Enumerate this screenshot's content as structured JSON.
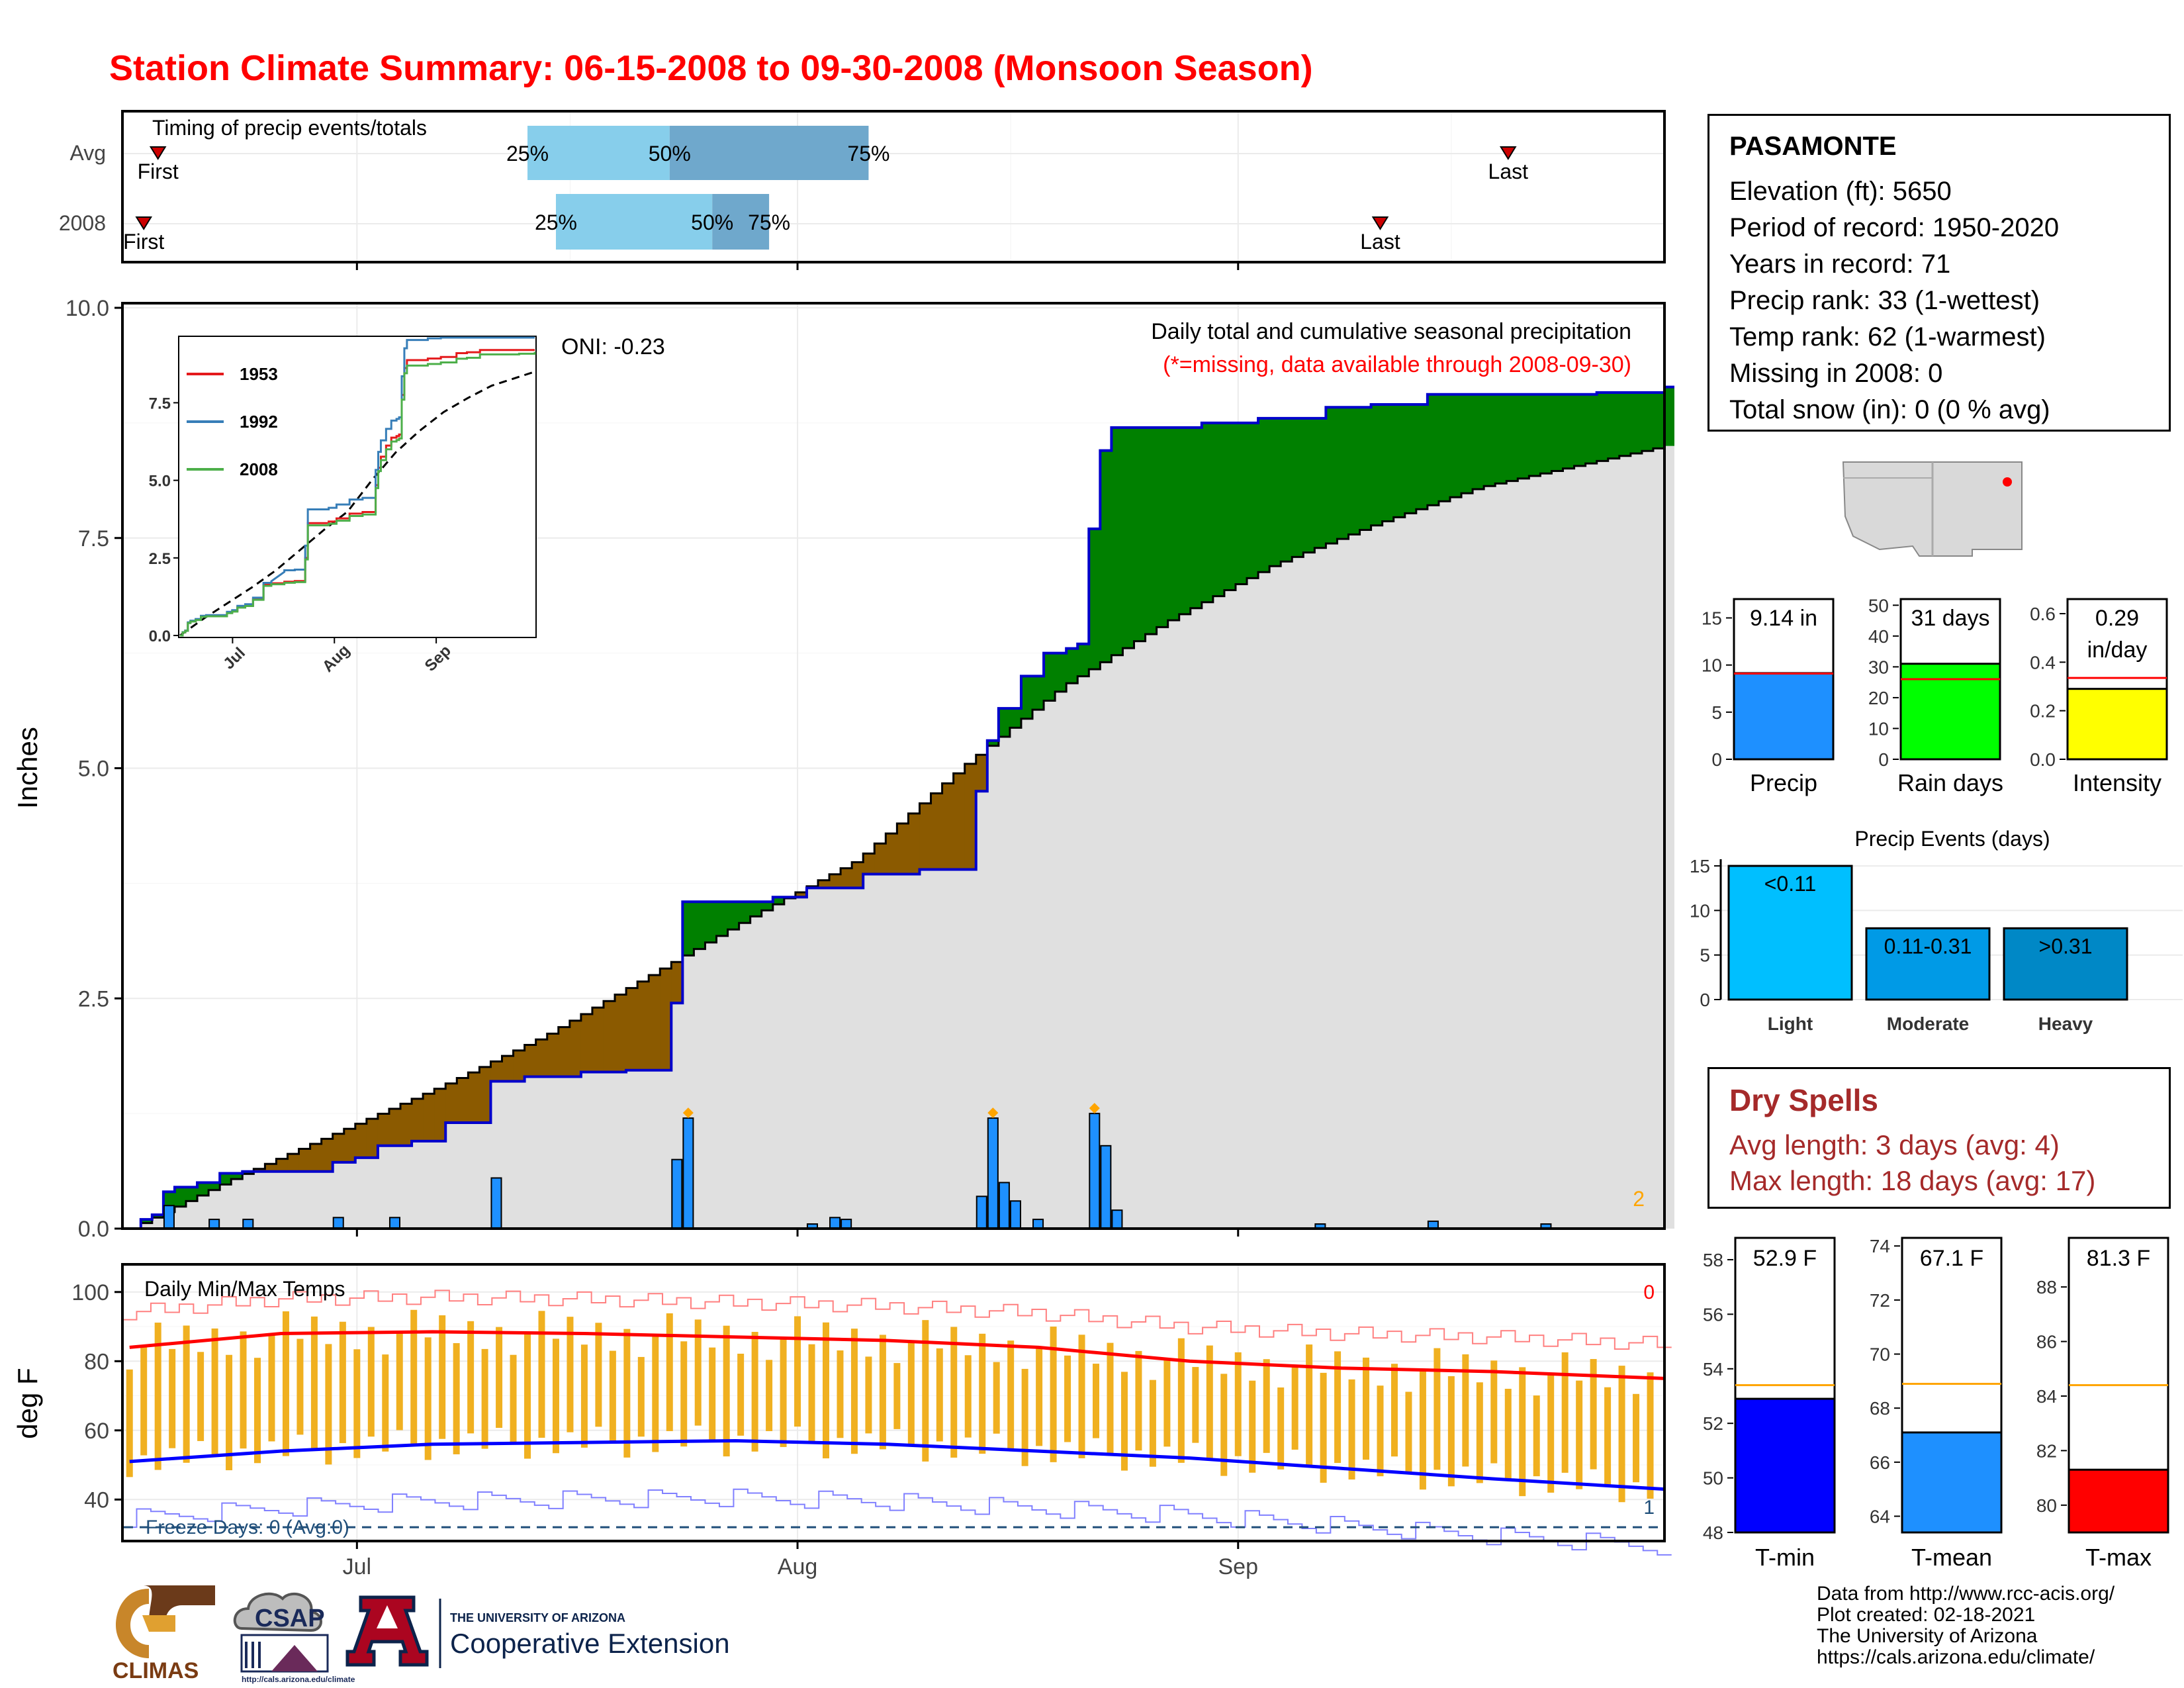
{
  "title": "Station Climate Summary: 06-15-2008 to 09-30-2008 (Monsoon Season)",
  "colors": {
    "title": "#ff0000",
    "observed": "#0000cc",
    "avg_line": "#000000",
    "above_avg": "#008000",
    "below_avg": "#8b5a00",
    "avg_fill": "#e0e0e0",
    "daily_bar": "#1e90ff",
    "tmax_line": "#ff0000",
    "tmin_line": "#0000ff",
    "temp_bar": "#f0b020"
  },
  "timing": {
    "label": "Timing of precip events/totals",
    "rows": [
      {
        "label": "Avg",
        "first_label": "First",
        "last_label": "Last",
        "p25": "25%",
        "p50": "50%",
        "p75": "75%",
        "first": "06-17",
        "last": "09-20",
        "q25": "07-13",
        "q50": "07-23",
        "q75": "08-06"
      },
      {
        "label": "2008",
        "first_label": "First",
        "last_label": "Last",
        "p25": "25%",
        "p50": "50%",
        "p75": "75%",
        "first": "06-16",
        "last": "09-11",
        "q25": "07-15",
        "q50": "07-26",
        "q75": "07-30"
      }
    ]
  },
  "precip": {
    "y_label": "Inches",
    "y_ticks": [
      "0.0",
      "2.5",
      "5.0",
      "7.5",
      "10.0"
    ],
    "x_ticks": [
      "Jul",
      "Aug",
      "Sep"
    ],
    "title_line1": "Daily total and cumulative seasonal precipitation",
    "title_line2": "(*=missing, data available through 2008-09-30)",
    "oni": "ONI: -0.23",
    "corner_count": "2",
    "inset": {
      "y_ticks": [
        "0.0",
        "2.5",
        "5.0",
        "7.5"
      ],
      "x_ticks": [
        "Jul",
        "Aug",
        "Sep"
      ],
      "legend": [
        {
          "name": "1953",
          "color": "#e41a1c"
        },
        {
          "name": "1992",
          "color": "#377eb8"
        },
        {
          "name": "2008",
          "color": "#4daf4a"
        }
      ]
    }
  },
  "temps": {
    "label": "Daily Min/Max Temps",
    "y_label": "deg F",
    "y_ticks": [
      "40",
      "60",
      "80",
      "100"
    ],
    "x_ticks": [
      "Jul",
      "Aug",
      "Sep"
    ],
    "freeze": "Freeze Days: 0 (Avg:0)",
    "count_hot": "0",
    "count_cold": "1"
  },
  "station": {
    "name": "PASAMONTE",
    "elevation": "Elevation (ft): 5650",
    "period": "Period of record: 1950-2020",
    "years": "Years in record: 71",
    "precip_rank": "Precip rank: 33 (1-wettest)",
    "temp_rank": "Temp rank: 62 (1-warmest)",
    "missing": "Missing in 2008: 0",
    "snow": "Total snow (in): 0 (0 % avg)"
  },
  "summary_bars": [
    {
      "label": "Precip",
      "value_label": "9.14 in",
      "value": 9.14,
      "avg": 9.1,
      "max": 17,
      "ticks": [
        "0",
        "5",
        "10",
        "15"
      ],
      "color": "#1e90ff"
    },
    {
      "label": "Rain days",
      "value_label": "31 days",
      "value": 31,
      "avg": 26,
      "max": 52,
      "ticks": [
        "0",
        "10",
        "20",
        "30",
        "40",
        "50"
      ],
      "color": "#00ff00"
    },
    {
      "label": "Intensity",
      "value_label": "0.29",
      "value_label2": "in/day",
      "value": 0.29,
      "avg": 0.335,
      "max": 0.66,
      "ticks": [
        "0.0",
        "0.2",
        "0.4",
        "0.6"
      ],
      "color": "#ffff00"
    }
  ],
  "events": {
    "title": "Precip Events (days)",
    "ticks": [
      "0",
      "5",
      "10",
      "15"
    ],
    "bars": [
      {
        "label": "Light",
        "box": "<0.11",
        "value": 15,
        "color": "#00bfff"
      },
      {
        "label": "Moderate",
        "box": "0.11-0.31",
        "value": 8,
        "color": "#009ae6"
      },
      {
        "label": "Heavy",
        "box": ">0.31",
        "value": 8,
        "color": "#0088c6"
      }
    ]
  },
  "dry_spells": {
    "title": "Dry Spells",
    "avg": "Avg length: 3 days (avg: 4)",
    "max": "Max length: 18 days (avg: 17)"
  },
  "temp_bars": [
    {
      "label": "T-min",
      "value_label": "52.9 F",
      "value": 52.9,
      "avg": 53.4,
      "min": 48,
      "max": 58.8,
      "ticks": [
        "48",
        "50",
        "52",
        "54",
        "56",
        "58"
      ],
      "color": "#0000ff"
    },
    {
      "label": "T-mean",
      "value_label": "67.1 F",
      "value": 67.1,
      "avg": 68.9,
      "min": 63.4,
      "max": 74.3,
      "ticks": [
        "64",
        "66",
        "68",
        "70",
        "72",
        "74"
      ],
      "color": "#1e90ff"
    },
    {
      "label": "T-max",
      "value_label": "81.3 F",
      "value": 81.3,
      "avg": 84.4,
      "min": 79.0,
      "max": 89.8,
      "ticks": [
        "80",
        "82",
        "84",
        "86",
        "88"
      ],
      "color": "#ff0000"
    }
  ],
  "logos": {
    "climas": "CLIMAS",
    "csap": "CSAP",
    "csap_url": "http://cals.arizona.edu/climate",
    "ua_small": "THE UNIVERSITY OF ARIZONA",
    "ua_big": "Cooperative Extension"
  },
  "credits": [
    "Data from http://www.rcc-acis.org/",
    "Plot created: 02-18-2021",
    "The University of Arizona",
    "https://cals.arizona.edu/climate/"
  ],
  "chart_data": [
    {
      "type": "area",
      "title": "Daily total and cumulative seasonal precipitation",
      "ylabel": "Inches",
      "ylim": [
        0,
        10
      ],
      "x_start": "2008-06-15",
      "x_end": "2008-09-30",
      "cumulative_2008": [
        [
          0,
          0
        ],
        [
          1,
          0.1
        ],
        [
          2,
          0.15
        ],
        [
          3,
          0.4
        ],
        [
          4,
          0.45
        ],
        [
          6,
          0.5
        ],
        [
          8,
          0.6
        ],
        [
          10,
          0.62
        ],
        [
          18,
          0.72
        ],
        [
          20,
          0.77
        ],
        [
          22,
          0.9
        ],
        [
          25,
          0.95
        ],
        [
          28,
          1.15
        ],
        [
          32,
          1.6
        ],
        [
          35,
          1.65
        ],
        [
          40,
          1.7
        ],
        [
          44,
          1.72
        ],
        [
          48,
          2.45
        ],
        [
          49,
          3.55
        ],
        [
          57,
          3.6
        ],
        [
          60,
          3.7
        ],
        [
          65,
          3.85
        ],
        [
          70,
          3.9
        ],
        [
          75,
          4.75
        ],
        [
          76,
          5.3
        ],
        [
          77,
          5.65
        ],
        [
          79,
          6.0
        ],
        [
          81,
          6.25
        ],
        [
          83,
          6.3
        ],
        [
          84,
          6.35
        ],
        [
          85,
          7.6
        ],
        [
          86,
          8.45
        ],
        [
          87,
          8.7
        ],
        [
          95,
          8.75
        ],
        [
          100,
          8.8
        ],
        [
          106,
          8.92
        ],
        [
          110,
          8.95
        ],
        [
          115,
          9.06
        ],
        [
          130,
          9.08
        ],
        [
          136,
          9.14
        ]
      ],
      "average_cumulative": [
        [
          0,
          0
        ],
        [
          10,
          0.55
        ],
        [
          20,
          1.05
        ],
        [
          30,
          1.55
        ],
        [
          40,
          2.1
        ],
        [
          50,
          2.75
        ],
        [
          60,
          3.4
        ],
        [
          70,
          4.0
        ],
        [
          80,
          5.0
        ],
        [
          90,
          5.9
        ],
        [
          100,
          6.6
        ],
        [
          110,
          7.2
        ],
        [
          120,
          7.65
        ],
        [
          130,
          8.05
        ],
        [
          140,
          8.3
        ],
        [
          148,
          8.5
        ]
      ],
      "daily_2008": [
        [
          3,
          0.25
        ],
        [
          7,
          0.1
        ],
        [
          10,
          0.1
        ],
        [
          18,
          0.12
        ],
        [
          23,
          0.12
        ],
        [
          32,
          0.55
        ],
        [
          48,
          0.75
        ],
        [
          49,
          1.2
        ],
        [
          60,
          0.05
        ],
        [
          62,
          0.12
        ],
        [
          63,
          0.1
        ],
        [
          75,
          0.35
        ],
        [
          76,
          1.2
        ],
        [
          77,
          0.5
        ],
        [
          78,
          0.3
        ],
        [
          80,
          0.1
        ],
        [
          85,
          1.25
        ],
        [
          86,
          0.9
        ],
        [
          87,
          0.2
        ],
        [
          105,
          0.05
        ],
        [
          115,
          0.08
        ],
        [
          125,
          0.05
        ]
      ]
    },
    {
      "type": "line",
      "title": "Daily Min/Max Temps",
      "ylabel": "deg F",
      "ylim": [
        28,
        108
      ],
      "series": [
        {
          "name": "Avg max",
          "values": [
            [
              0,
              84
            ],
            [
              15,
              88
            ],
            [
              30,
              88.5
            ],
            [
              45,
              88
            ],
            [
              60,
              87
            ],
            [
              75,
              86
            ],
            [
              90,
              84
            ],
            [
              105,
              80
            ],
            [
              120,
              78
            ],
            [
              135,
              77
            ],
            [
              152,
              75
            ]
          ]
        },
        {
          "name": "Avg min",
          "values": [
            [
              0,
              51
            ],
            [
              15,
              54
            ],
            [
              30,
              56
            ],
            [
              45,
              56.5
            ],
            [
              60,
              57
            ],
            [
              75,
              56
            ],
            [
              90,
              54
            ],
            [
              105,
              52
            ],
            [
              120,
              49
            ],
            [
              135,
              46
            ],
            [
              152,
              43
            ]
          ]
        }
      ]
    }
  ]
}
